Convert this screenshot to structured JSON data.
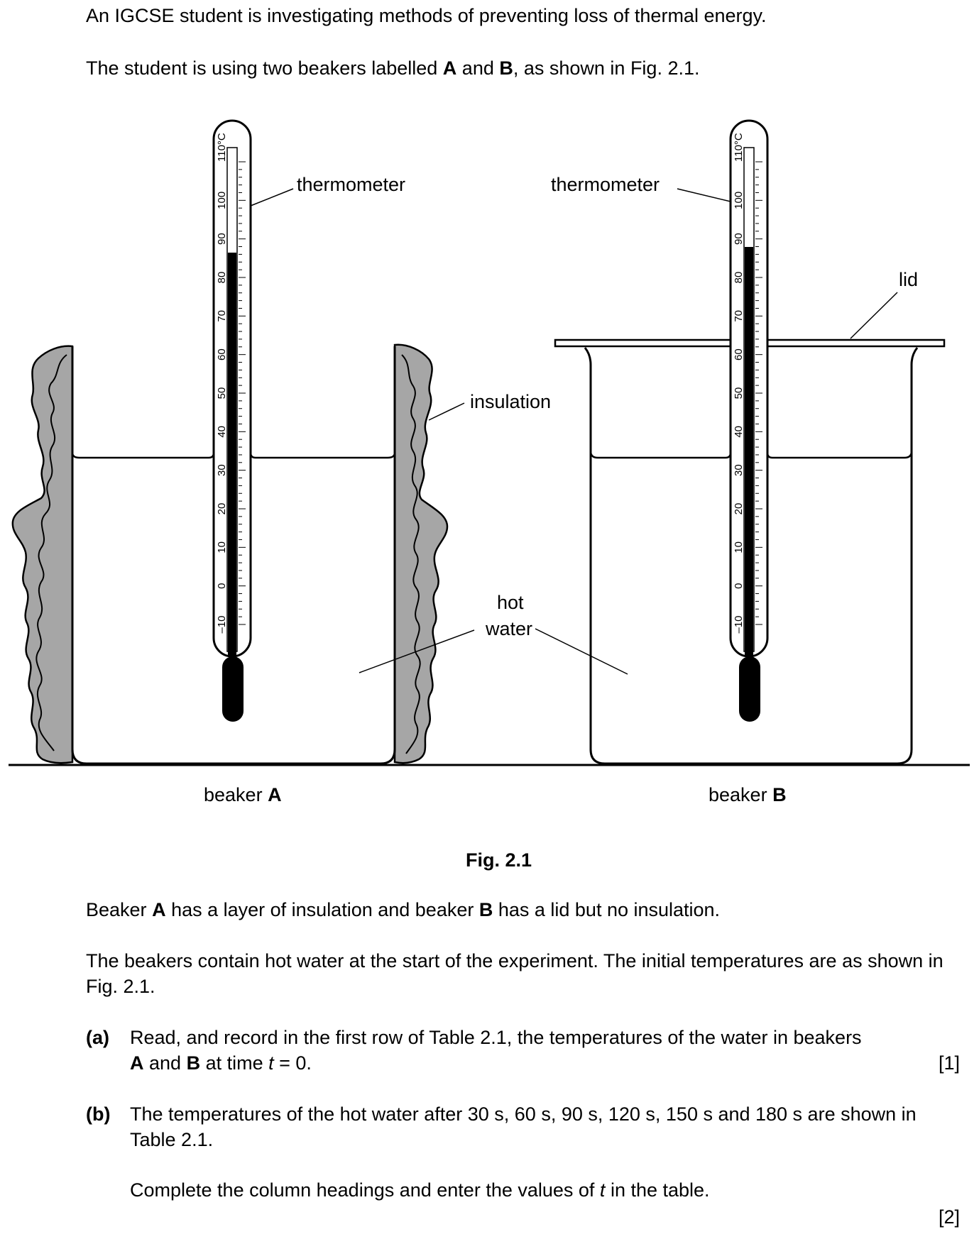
{
  "intro": {
    "line1": "An IGCSE student is investigating methods of preventing loss of thermal energy.",
    "line2_pre": "The student is using two beakers labelled ",
    "line2_A": "A",
    "line2_mid": " and ",
    "line2_B": "B",
    "line2_post": ", as shown in Fig. 2.1."
  },
  "figure": {
    "labels": {
      "thermometer_a": "thermometer",
      "thermometer_b": "thermometer",
      "lid": "lid",
      "insulation": "insulation",
      "hot": "hot",
      "water": "water",
      "beaker_a_word": "beaker ",
      "beaker_a_letter": "A",
      "beaker_b_word": "beaker ",
      "beaker_b_letter": "B"
    },
    "scale": [
      "110°C",
      "100",
      "90",
      "80",
      "70",
      "60",
      "50",
      "40",
      "30",
      "20",
      "10",
      "0",
      "–10"
    ],
    "caption": "Fig. 2.1"
  },
  "body": {
    "p1_pre": "Beaker ",
    "p1_A": "A",
    "p1_mid": " has a layer of insulation and beaker ",
    "p1_B": "B",
    "p1_post": " has a lid but no insulation.",
    "p2": "The beakers contain hot water at the start of the experiment. The initial temperatures are as shown in Fig. 2.1."
  },
  "questions": {
    "a": {
      "label": "(a)",
      "line1": "Read, and record in the first row of Table 2.1, the temperatures of the water in beakers",
      "l2_A": "A",
      "l2_mid": " and ",
      "l2_B": "B",
      "l2_text": " at time ",
      "l2_t": "t",
      "l2_end": " = 0.",
      "marks": "[1]"
    },
    "b": {
      "label": "(b)",
      "text": "The temperatures of the hot water after 30 s, 60 s, 90 s, 120 s, 150 s and 180 s are shown in Table 2.1.",
      "instr_pre": "Complete the column headings and enter the values of ",
      "instr_t": "t",
      "instr_post": " in the table.",
      "marks": "[2]"
    }
  }
}
